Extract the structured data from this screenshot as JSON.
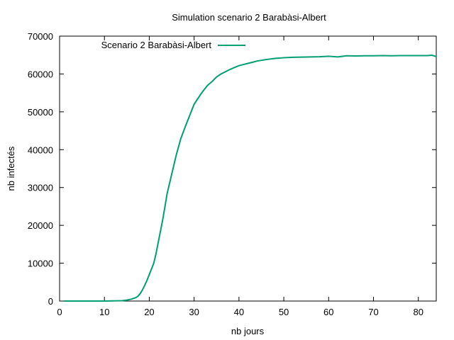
{
  "chart_data": {
    "type": "line",
    "title": "Simulation scenario 2 Barabàsi-Albert",
    "xlabel": "nb jours",
    "ylabel": "nb infectés",
    "xlim": [
      0,
      84
    ],
    "ylim": [
      0,
      70000
    ],
    "xticks": [
      0,
      10,
      20,
      30,
      40,
      50,
      60,
      70,
      80
    ],
    "yticks": [
      0,
      10000,
      20000,
      30000,
      40000,
      50000,
      60000,
      70000
    ],
    "grid": false,
    "legend_position": "top-left",
    "series": [
      {
        "name": "Scenario 2 Barabàsi-Albert",
        "color": "#009e73",
        "x": [
          1,
          5,
          10,
          14,
          15,
          16,
          17,
          17.5,
          18,
          18.5,
          19,
          19.5,
          20,
          20.5,
          21,
          21.5,
          22,
          22.5,
          23,
          23.5,
          24,
          24.5,
          25,
          26,
          27,
          28,
          29,
          30,
          31,
          32,
          33,
          34,
          35,
          36,
          37,
          38,
          39,
          40,
          41,
          42,
          43,
          44,
          45,
          46,
          47,
          48,
          50,
          52,
          54,
          56,
          58,
          60,
          62,
          64,
          66,
          68,
          70,
          72,
          74,
          76,
          78,
          80,
          82,
          83,
          84
        ],
        "y": [
          0,
          0,
          0,
          100,
          250,
          500,
          900,
          1300,
          2000,
          3000,
          4200,
          5500,
          7000,
          8500,
          10000,
          12500,
          15500,
          18500,
          21500,
          25000,
          28500,
          31000,
          33500,
          38500,
          42800,
          46000,
          49000,
          52000,
          53800,
          55500,
          57000,
          58000,
          59200,
          60000,
          60600,
          61200,
          61700,
          62200,
          62500,
          62800,
          63100,
          63400,
          63600,
          63800,
          63950,
          64100,
          64300,
          64400,
          64450,
          64500,
          64550,
          64700,
          64500,
          64800,
          64750,
          64800,
          64800,
          64850,
          64800,
          64850,
          64850,
          64850,
          64850,
          64950,
          64600
        ]
      }
    ]
  }
}
